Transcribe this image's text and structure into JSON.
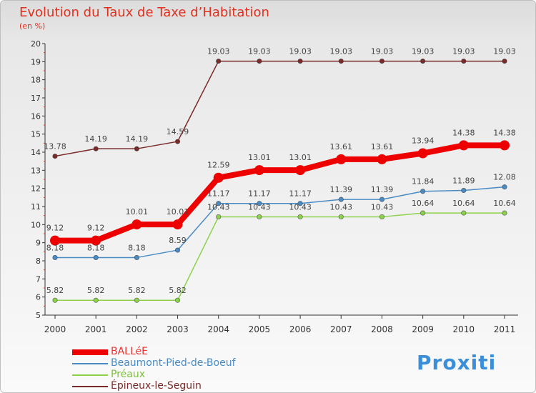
{
  "page": {
    "title": "Evolution du Taux de Taxe d’Habitation",
    "unit_label": "(en %)",
    "logo_text": "Proxiti"
  },
  "chart_data": {
    "type": "line",
    "title": "Evolution du Taux de Taxe d’Habitation",
    "ylabel": "(en %)",
    "ylim": [
      5,
      20
    ],
    "yticks": [
      "5",
      "6",
      "7",
      "8",
      "9",
      "10",
      "11",
      "12",
      "13",
      "14",
      "15",
      "16",
      "17",
      "18",
      "19",
      "20"
    ],
    "x": [
      "2000",
      "2001",
      "2002",
      "2003",
      "2004",
      "2005",
      "2006",
      "2007",
      "2008",
      "2009",
      "2010",
      "2011"
    ],
    "grid": false,
    "legend_position": "bottom-left",
    "series": [
      {
        "name": "BALLéE",
        "color": "#ee0000",
        "values": [
          9.12,
          9.12,
          10.01,
          10.01,
          12.59,
          13.01,
          13.01,
          13.61,
          13.61,
          13.94,
          14.38,
          14.38
        ],
        "labels": [
          "9.12",
          "9.12",
          "10.01",
          "10.01",
          "12.59",
          "13.01",
          "13.01",
          "13.61",
          "13.61",
          "13.94",
          "14.38",
          "14.38"
        ]
      },
      {
        "name": "Beaumont-Pied-de-Boeuf",
        "color": "#4a8bc4",
        "values": [
          8.18,
          8.18,
          8.18,
          8.59,
          11.17,
          11.17,
          11.17,
          11.39,
          11.39,
          11.84,
          11.89,
          12.08
        ],
        "labels": [
          "8.18",
          "8.18",
          "8.18",
          "8.59",
          "11.17",
          "11.17",
          "11.17",
          "11.39",
          "11.39",
          "11.84",
          "11.89",
          "12.08"
        ]
      },
      {
        "name": "Préaux",
        "color": "#8cd24c",
        "values": [
          5.82,
          5.82,
          5.82,
          5.82,
          10.43,
          10.43,
          10.43,
          10.43,
          10.43,
          10.64,
          10.64,
          10.64
        ],
        "labels": [
          "5.82",
          "5.82",
          "5.82",
          "5.82",
          "10.43",
          "10.43",
          "10.43",
          "10.43",
          "10.43",
          "10.64",
          "10.64",
          "10.64"
        ]
      },
      {
        "name": "Épineux-le-Seguin",
        "color": "#7a2a2a",
        "values": [
          13.78,
          14.19,
          14.19,
          14.59,
          19.03,
          19.03,
          19.03,
          19.03,
          19.03,
          19.03,
          19.03,
          19.03
        ],
        "labels": [
          "13.78",
          "14.19",
          "14.19",
          "14.59",
          "19.03",
          "19.03",
          "19.03",
          "19.03",
          "19.03",
          "19.03",
          "19.03",
          "19.03"
        ]
      }
    ]
  }
}
